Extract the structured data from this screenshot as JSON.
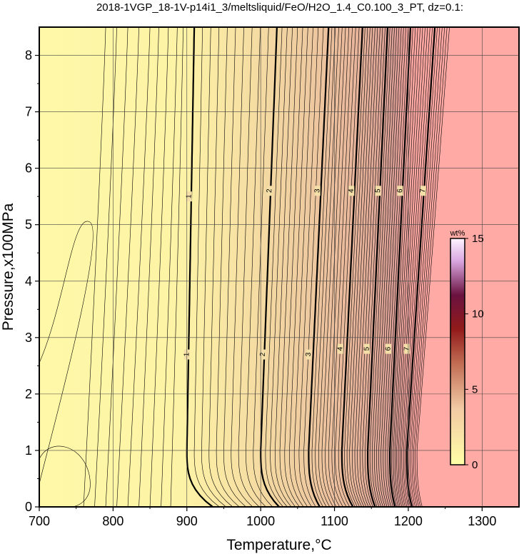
{
  "chart_data": {
    "type": "contour",
    "title": "2018-1VGP_18-1V-p14i1_3/meltsliquid/FeO/H2O_1.4_C0.100_3_PT, dz=0.1:",
    "xlabel": "Temperature,°C",
    "ylabel": "Pressure,x100MPa",
    "xlim": [
      700,
      1350
    ],
    "ylim": [
      0,
      8.5
    ],
    "x_ticks": [
      700,
      800,
      900,
      1000,
      1100,
      1200,
      1300
    ],
    "y_ticks": [
      0,
      1,
      2,
      3,
      4,
      5,
      6,
      7,
      8
    ],
    "grid": true,
    "colorbar": {
      "unit": "wt%",
      "range": [
        0,
        15
      ],
      "ticks": [
        0,
        5,
        10,
        15
      ],
      "colors": [
        "#ffffa8",
        "#f3c8a0",
        "#a01818",
        "#5a0a45",
        "#fff0ff"
      ]
    },
    "background_colors": {
      "low": "#fff7a8",
      "high": "#ffaaa5"
    },
    "labeled_contours": [
      {
        "level": 1,
        "T_at_P0": 935,
        "T_at_P1": 900,
        "T_at_P8_5": 910
      },
      {
        "level": 2,
        "T_at_P0": 1025,
        "T_at_P1": 1000,
        "T_at_P8_5": 1022
      },
      {
        "level": 3,
        "T_at_P0": 1080,
        "T_at_P1": 1065,
        "T_at_P8_5": 1092
      },
      {
        "level": 4,
        "T_at_P0": 1125,
        "T_at_P1": 1110,
        "T_at_P8_5": 1138
      },
      {
        "level": 5,
        "T_at_P0": 1155,
        "T_at_P1": 1145,
        "T_at_P8_5": 1172
      },
      {
        "level": 6,
        "T_at_P0": 1182,
        "T_at_P1": 1175,
        "T_at_P8_5": 1203
      },
      {
        "level": 7,
        "T_at_P0": 1205,
        "T_at_P1": 1198,
        "T_at_P8_5": 1236
      }
    ],
    "contour_labels": [
      {
        "text": "1",
        "T": 900,
        "P": 2.7
      },
      {
        "text": "1",
        "T": 903,
        "P": 5.5
      },
      {
        "text": "2",
        "T": 1003,
        "P": 2.7
      },
      {
        "text": "2",
        "T": 1012,
        "P": 5.6
      },
      {
        "text": "3",
        "T": 1065,
        "P": 2.7
      },
      {
        "text": "3",
        "T": 1077,
        "P": 5.6
      },
      {
        "text": "4",
        "T": 1108,
        "P": 2.8
      },
      {
        "text": "4",
        "T": 1123,
        "P": 5.6
      },
      {
        "text": "5",
        "T": 1144,
        "P": 2.8
      },
      {
        "text": "5",
        "T": 1159,
        "P": 5.6
      },
      {
        "text": "6",
        "T": 1173,
        "P": 2.8
      },
      {
        "text": "6",
        "T": 1189,
        "P": 5.6
      },
      {
        "text": "7",
        "T": 1198,
        "P": 2.8
      },
      {
        "text": "7",
        "T": 1220,
        "P": 5.6
      }
    ]
  }
}
